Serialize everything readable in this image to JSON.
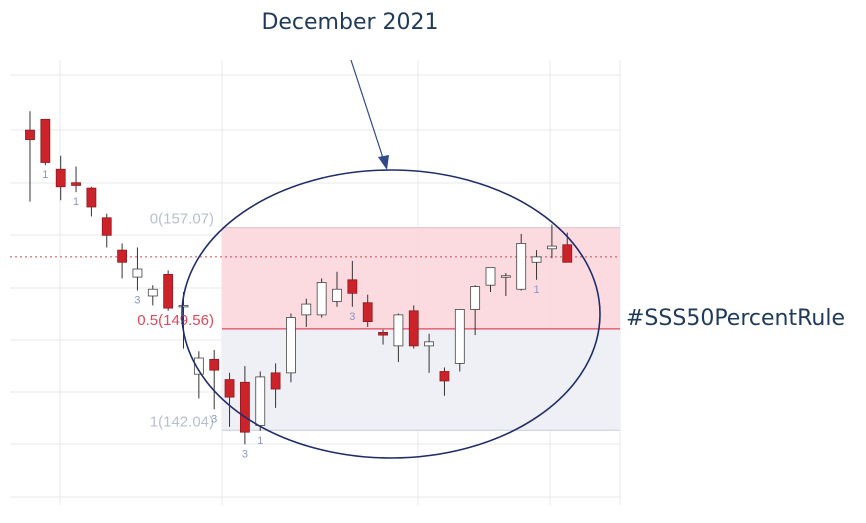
{
  "annotation": {
    "title": "December 2021",
    "hashtag": "#SSS50PercentRule"
  },
  "colors": {
    "bull_fill": "#ffffff",
    "bear_fill": "#cc2229",
    "wick": "#333333",
    "zone_upper": "#fbd5da",
    "zone_lower": "#eef0f5",
    "level_line": "#e0495b",
    "current_price_line": "#d24b4b",
    "annotation": "#2f4a86",
    "fib_label": "#b8bfcc",
    "fib_label_mid": "#e0495b",
    "marker": "#8a96c8"
  },
  "chart_data": {
    "type": "candlestick",
    "title": "",
    "xlabel": "",
    "ylabel": "",
    "ylim": [
      136.5,
      169.5
    ],
    "grid": true,
    "levels": [
      {
        "label": "0(157.07)",
        "value": 157.07
      },
      {
        "label": "0.5(149.56)",
        "value": 149.56
      },
      {
        "label": "1(142.04)",
        "value": 142.04
      }
    ],
    "current_price": 154.9,
    "candles": [
      {
        "o": 164.3,
        "h": 165.7,
        "l": 159.0,
        "c": 163.6
      },
      {
        "o": 165.1,
        "h": 165.1,
        "l": 161.7,
        "c": 161.9
      },
      {
        "o": 161.4,
        "h": 162.4,
        "l": 159.1,
        "c": 160.1
      },
      {
        "o": 160.4,
        "h": 161.6,
        "l": 159.7,
        "c": 160.2
      },
      {
        "o": 160.0,
        "h": 160.1,
        "l": 157.9,
        "c": 158.6
      },
      {
        "o": 157.8,
        "h": 158.1,
        "l": 155.6,
        "c": 156.5
      },
      {
        "o": 155.4,
        "h": 155.9,
        "l": 153.3,
        "c": 154.5
      },
      {
        "o": 153.4,
        "h": 155.6,
        "l": 152.4,
        "c": 154.0
      },
      {
        "o": 152.0,
        "h": 152.8,
        "l": 151.3,
        "c": 152.5
      },
      {
        "o": 153.6,
        "h": 153.9,
        "l": 150.9,
        "c": 151.1
      },
      {
        "o": 151.3,
        "h": 152.3,
        "l": 148.1,
        "c": 151.3
      },
      {
        "o": 146.2,
        "h": 147.9,
        "l": 144.4,
        "c": 147.4
      },
      {
        "o": 147.3,
        "h": 148.0,
        "l": 143.6,
        "c": 146.5
      },
      {
        "o": 145.8,
        "h": 146.3,
        "l": 142.3,
        "c": 144.5
      },
      {
        "o": 145.6,
        "h": 146.8,
        "l": 141.0,
        "c": 141.9
      },
      {
        "o": 142.4,
        "h": 146.4,
        "l": 142.0,
        "c": 146.0
      },
      {
        "o": 146.3,
        "h": 147.0,
        "l": 143.7,
        "c": 145.1
      },
      {
        "o": 146.3,
        "h": 150.7,
        "l": 145.6,
        "c": 150.4
      },
      {
        "o": 150.6,
        "h": 151.8,
        "l": 149.7,
        "c": 151.4
      },
      {
        "o": 150.6,
        "h": 153.3,
        "l": 150.4,
        "c": 153.0
      },
      {
        "o": 151.6,
        "h": 153.8,
        "l": 151.2,
        "c": 152.5
      },
      {
        "o": 153.2,
        "h": 154.6,
        "l": 151.2,
        "c": 152.2
      },
      {
        "o": 151.5,
        "h": 152.1,
        "l": 149.7,
        "c": 150.1
      },
      {
        "o": 149.3,
        "h": 149.5,
        "l": 148.4,
        "c": 149.1
      },
      {
        "o": 148.3,
        "h": 150.7,
        "l": 147.1,
        "c": 150.6
      },
      {
        "o": 150.9,
        "h": 151.3,
        "l": 148.1,
        "c": 148.3
      },
      {
        "o": 148.3,
        "h": 149.2,
        "l": 146.3,
        "c": 148.6
      },
      {
        "o": 146.4,
        "h": 146.7,
        "l": 144.6,
        "c": 145.7
      },
      {
        "o": 147.0,
        "h": 151.0,
        "l": 146.4,
        "c": 151.0
      },
      {
        "o": 151.0,
        "h": 152.8,
        "l": 149.1,
        "c": 152.7
      },
      {
        "o": 152.8,
        "h": 154.1,
        "l": 152.3,
        "c": 154.1
      },
      {
        "o": 153.5,
        "h": 153.7,
        "l": 152.0,
        "c": 153.5
      },
      {
        "o": 152.5,
        "h": 156.6,
        "l": 152.4,
        "c": 155.9
      },
      {
        "o": 154.5,
        "h": 155.4,
        "l": 153.2,
        "c": 154.9
      },
      {
        "o": 155.5,
        "h": 157.3,
        "l": 154.8,
        "c": 155.7
      },
      {
        "o": 155.8,
        "h": 156.7,
        "l": 154.5,
        "c": 154.5
      }
    ],
    "markers": [
      {
        "index": 1,
        "label": "1"
      },
      {
        "index": 3,
        "label": "1"
      },
      {
        "index": 7,
        "label": "3"
      },
      {
        "index": 12,
        "label": "3"
      },
      {
        "index": 14,
        "label": "3"
      },
      {
        "index": 15,
        "label": "1"
      },
      {
        "index": 21,
        "label": "3"
      },
      {
        "index": 33,
        "label": "1"
      }
    ]
  }
}
